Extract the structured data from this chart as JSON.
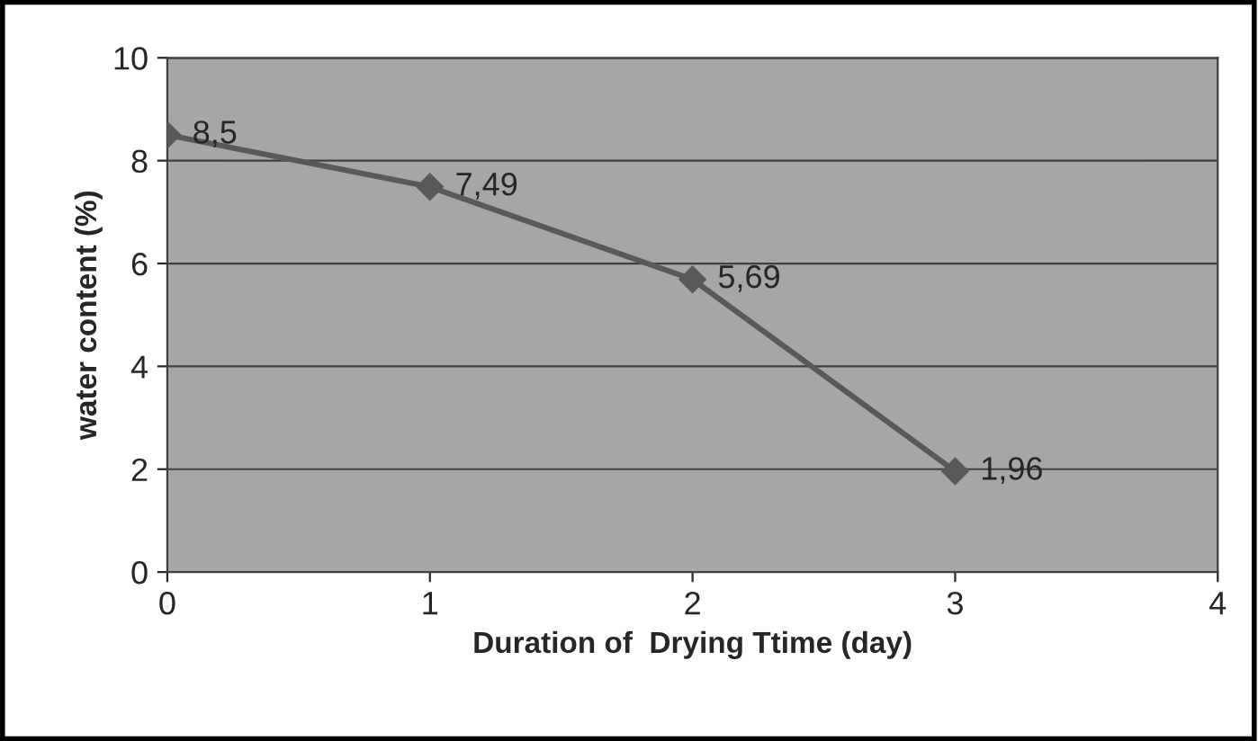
{
  "chart_data": {
    "type": "line",
    "xlabel": "Duration of  Drying Ttime (day)",
    "ylabel": "water content (%)",
    "x": [
      0,
      1,
      2,
      3
    ],
    "series": [
      {
        "color": "#595959",
        "values": [
          8.5,
          7.49,
          5.69,
          1.96
        ],
        "value_labels": [
          "8,5",
          "7,49",
          "5,69",
          "1,96"
        ]
      }
    ],
    "xlim": [
      0,
      4
    ],
    "xticks": [
      0,
      1,
      2,
      3,
      4
    ],
    "ylim": [
      0,
      10
    ],
    "yticks": [
      0,
      2,
      4,
      6,
      8,
      10
    ],
    "grid": "y",
    "marker": "diamond",
    "line_style": "solid"
  }
}
